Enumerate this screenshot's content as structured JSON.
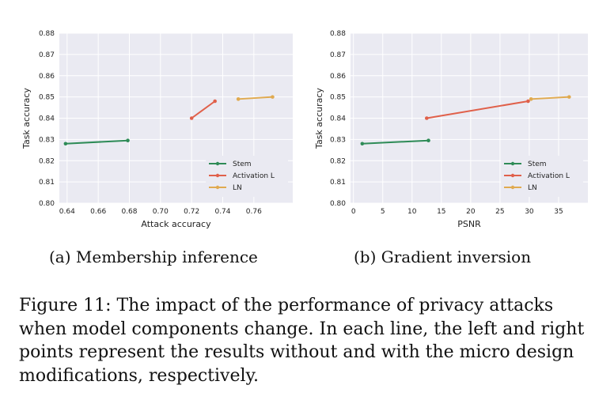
{
  "chart_data": [
    {
      "type": "line",
      "subcaption": "(a) Membership inference",
      "xlabel": "Attack accuracy",
      "ylabel": "Task accuracy",
      "xlim": [
        0.635,
        0.785
      ],
      "ylim": [
        0.8,
        0.88
      ],
      "xticks": [
        0.64,
        0.66,
        0.68,
        0.7,
        0.72,
        0.74,
        0.76
      ],
      "xtick_labels": [
        "0.64",
        "0.66",
        "0.68",
        "0.70",
        "0.72",
        "0.74",
        "0.76"
      ],
      "yticks": [
        0.8,
        0.81,
        0.82,
        0.83,
        0.84,
        0.85,
        0.86,
        0.87,
        0.88
      ],
      "ytick_labels": [
        "0.80",
        "0.81",
        "0.82",
        "0.83",
        "0.84",
        "0.85",
        "0.86",
        "0.87",
        "0.88"
      ],
      "grid": true,
      "legend_position": "lower-right",
      "series": [
        {
          "name": "Stem",
          "color": "#2e8b57",
          "x": [
            0.639,
            0.679
          ],
          "y": [
            0.828,
            0.8295
          ]
        },
        {
          "name": "Activation L",
          "color": "#e0604a",
          "x": [
            0.72,
            0.735
          ],
          "y": [
            0.84,
            0.848
          ]
        },
        {
          "name": "LN",
          "color": "#e0aa50",
          "x": [
            0.75,
            0.772
          ],
          "y": [
            0.849,
            0.85
          ]
        }
      ]
    },
    {
      "type": "line",
      "subcaption": "(b) Gradient inversion",
      "xlabel": "PSNR",
      "ylabel": "Task accuracy",
      "xlim": [
        -0.5,
        40
      ],
      "ylim": [
        0.8,
        0.88
      ],
      "xticks": [
        0,
        5,
        10,
        15,
        20,
        25,
        30,
        35
      ],
      "xtick_labels": [
        "0",
        "5",
        "10",
        "15",
        "20",
        "25",
        "30",
        "35"
      ],
      "yticks": [
        0.8,
        0.81,
        0.82,
        0.83,
        0.84,
        0.85,
        0.86,
        0.87,
        0.88
      ],
      "ytick_labels": [
        "0.80",
        "0.81",
        "0.82",
        "0.83",
        "0.84",
        "0.85",
        "0.86",
        "0.87",
        "0.88"
      ],
      "grid": true,
      "legend_position": "lower-right",
      "series": [
        {
          "name": "Stem",
          "color": "#2e8b57",
          "x": [
            1.5,
            12.8
          ],
          "y": [
            0.828,
            0.8295
          ]
        },
        {
          "name": "Activation L",
          "color": "#e0604a",
          "x": [
            12.5,
            29.8
          ],
          "y": [
            0.84,
            0.848
          ]
        },
        {
          "name": "LN",
          "color": "#e0aa50",
          "x": [
            30.3,
            36.8
          ],
          "y": [
            0.849,
            0.85
          ]
        }
      ]
    }
  ],
  "figure_caption": "Figure 11: The impact of the performance of privacy attacks when model components change. In each line, the left and right points represent the results without and with the micro design modifications, respectively."
}
